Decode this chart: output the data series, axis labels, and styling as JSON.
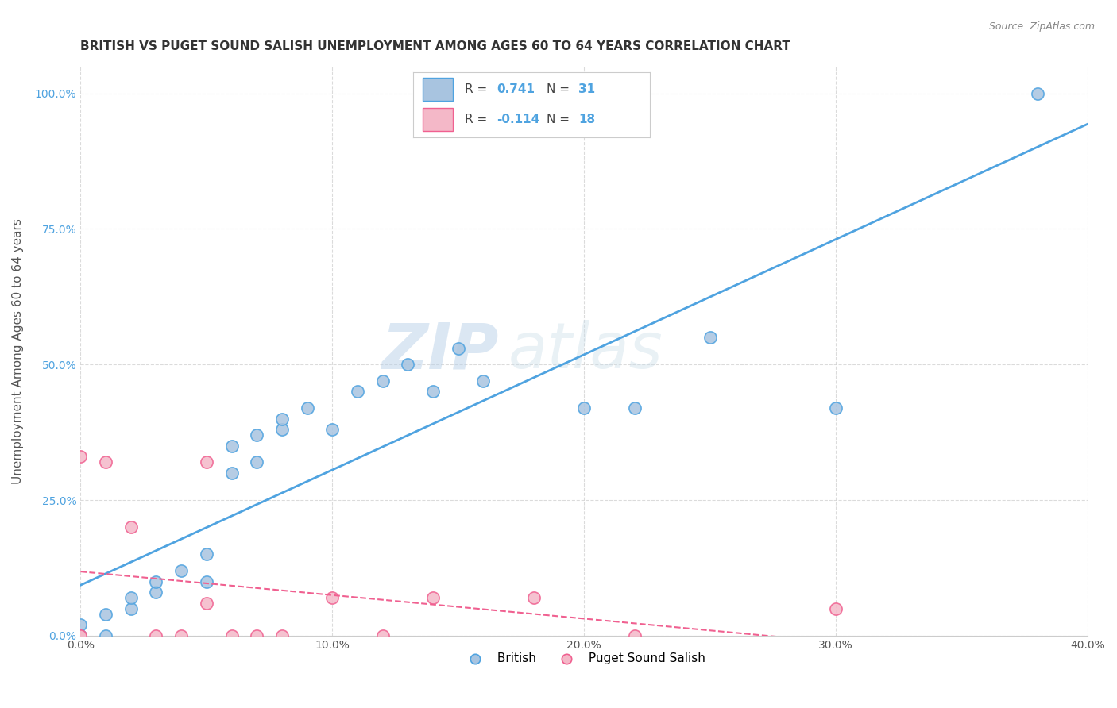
{
  "title": "BRITISH VS PUGET SOUND SALISH UNEMPLOYMENT AMONG AGES 60 TO 64 YEARS CORRELATION CHART",
  "source": "Source: ZipAtlas.com",
  "ylabel": "Unemployment Among Ages 60 to 64 years",
  "xlim": [
    0.0,
    0.4
  ],
  "ylim": [
    0.0,
    1.05
  ],
  "yticks": [
    0.0,
    0.25,
    0.5,
    0.75,
    1.0
  ],
  "ytick_labels": [
    "0.0%",
    "25.0%",
    "50.0%",
    "75.0%",
    "100.0%"
  ],
  "xticks": [
    0.0,
    0.1,
    0.2,
    0.3,
    0.4
  ],
  "xtick_labels": [
    "0.0%",
    "10.0%",
    "20.0%",
    "30.0%",
    "40.0%"
  ],
  "british_R": 0.741,
  "british_N": 31,
  "puget_R": -0.114,
  "puget_N": 18,
  "british_color": "#a8c4e0",
  "british_line_color": "#4fa3e0",
  "puget_color": "#f4b8c8",
  "puget_line_color": "#f06090",
  "watermark_zip": "ZIP",
  "watermark_atlas": "atlas",
  "british_scatter_x": [
    0.0,
    0.0,
    0.0,
    0.01,
    0.01,
    0.02,
    0.02,
    0.03,
    0.03,
    0.04,
    0.05,
    0.05,
    0.06,
    0.06,
    0.07,
    0.07,
    0.08,
    0.08,
    0.09,
    0.1,
    0.11,
    0.12,
    0.13,
    0.14,
    0.15,
    0.16,
    0.2,
    0.22,
    0.25,
    0.3,
    0.38
  ],
  "british_scatter_y": [
    0.0,
    0.0,
    0.02,
    0.0,
    0.04,
    0.05,
    0.07,
    0.08,
    0.1,
    0.12,
    0.1,
    0.15,
    0.3,
    0.35,
    0.32,
    0.37,
    0.38,
    0.4,
    0.42,
    0.38,
    0.45,
    0.47,
    0.5,
    0.45,
    0.53,
    0.47,
    0.42,
    0.42,
    0.55,
    0.42,
    1.0
  ],
  "puget_scatter_x": [
    0.0,
    0.0,
    0.0,
    0.01,
    0.02,
    0.03,
    0.04,
    0.05,
    0.05,
    0.06,
    0.07,
    0.08,
    0.1,
    0.12,
    0.14,
    0.18,
    0.22,
    0.3
  ],
  "puget_scatter_y": [
    0.0,
    0.0,
    0.33,
    0.32,
    0.2,
    0.0,
    0.0,
    0.06,
    0.32,
    0.0,
    0.0,
    0.0,
    0.07,
    0.0,
    0.07,
    0.07,
    0.0,
    0.05
  ],
  "background_color": "#ffffff",
  "grid_color": "#cccccc",
  "title_fontsize": 11,
  "axis_label_fontsize": 11,
  "tick_fontsize": 10,
  "legend_fontsize": 11
}
